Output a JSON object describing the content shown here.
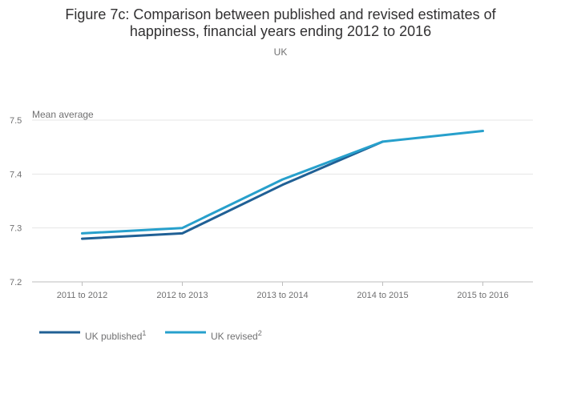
{
  "chart_data": {
    "type": "line",
    "title_line1": "Figure 7c: Comparison between published and revised estimates of",
    "title_line2": "happiness, financial years ending 2012 to 2016",
    "subtitle": "UK",
    "ylabel": "Mean average",
    "categories": [
      "2011 to 2012",
      "2012 to 2013",
      "2013 to 2014",
      "2014 to 2015",
      "2015 to 2016"
    ],
    "ylim": [
      7.2,
      7.5
    ],
    "yticks": [
      "7.2",
      "7.3",
      "7.4",
      "7.5"
    ],
    "grid": true,
    "legend_position": "bottom-left",
    "series": [
      {
        "name": "UK published",
        "superscript": "1",
        "color": "#206095",
        "values": [
          7.28,
          7.29,
          7.38,
          7.46,
          null
        ]
      },
      {
        "name": "UK revised",
        "superscript": "2",
        "color": "#27a0cc",
        "values": [
          7.29,
          7.3,
          7.39,
          7.46,
          7.48
        ]
      }
    ]
  }
}
